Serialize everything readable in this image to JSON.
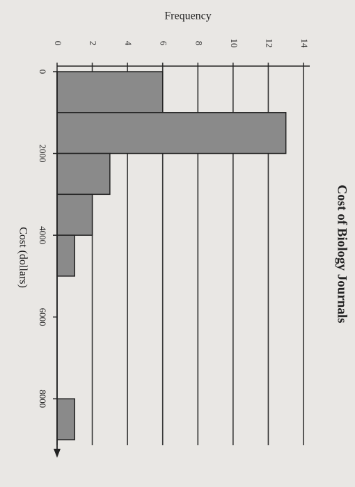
{
  "chart_data": {
    "type": "histogram",
    "title": "Cost of Biology Journals",
    "x_label": "Cost (dollars)",
    "y_label": "Frequency",
    "bins": [
      0,
      1000,
      2000,
      3000,
      4000,
      5000,
      6000,
      7000,
      8000,
      9000
    ],
    "values": [
      6,
      13,
      3,
      2,
      1,
      0,
      0,
      0,
      1
    ],
    "color": "#8a8a8a",
    "xlim": [
      0,
      9000
    ],
    "xticks": [
      0,
      2000,
      4000,
      6000,
      8000
    ],
    "ylim": [
      0,
      14
    ],
    "yticks": [
      0,
      2,
      4,
      6,
      8,
      10,
      12,
      14
    ],
    "grid": true
  }
}
